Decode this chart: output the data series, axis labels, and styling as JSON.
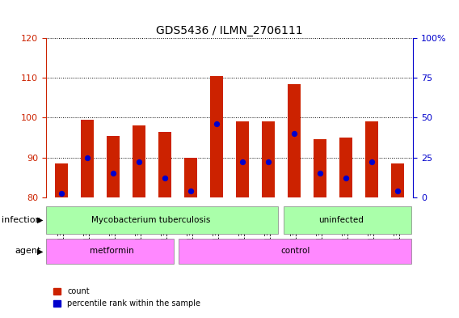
{
  "title": "GDS5436 / ILMN_2706111",
  "samples": [
    "GSM1378196",
    "GSM1378197",
    "GSM1378198",
    "GSM1378199",
    "GSM1378200",
    "GSM1378192",
    "GSM1378193",
    "GSM1378194",
    "GSM1378195",
    "GSM1378201",
    "GSM1378202",
    "GSM1378203",
    "GSM1378204",
    "GSM1378205"
  ],
  "counts": [
    88.5,
    99.5,
    95.5,
    98.0,
    96.5,
    90.0,
    110.5,
    99.0,
    99.0,
    108.5,
    94.5,
    95.0,
    99.0,
    88.5
  ],
  "percentile_values": [
    2.5,
    25.0,
    15.0,
    22.0,
    12.0,
    4.0,
    46.0,
    22.0,
    22.0,
    40.0,
    15.0,
    12.0,
    22.0,
    4.0
  ],
  "ylim_left": [
    80,
    120
  ],
  "ylim_right": [
    0,
    100
  ],
  "bar_bottom": 80.0,
  "bar_color": "#cc2200",
  "dot_color": "#0000cc",
  "infection_labels": [
    {
      "text": "Mycobacterium tuberculosis",
      "start": 0,
      "end": 8
    },
    {
      "text": "uninfected",
      "start": 9,
      "end": 13
    }
  ],
  "agent_labels": [
    {
      "text": "metformin",
      "start": 0,
      "end": 4
    },
    {
      "text": "control",
      "start": 5,
      "end": 13
    }
  ],
  "infection_color": "#aaffaa",
  "agent_color": "#ff88ff",
  "infection_row_label": "infection",
  "agent_row_label": "agent",
  "legend_count_label": "count",
  "legend_percentile_label": "percentile rank within the sample",
  "yticks_left": [
    80,
    90,
    100,
    110,
    120
  ],
  "yticks_right": [
    0,
    25,
    50,
    75,
    100
  ],
  "right_axis_color": "#0000cc",
  "left_axis_color": "#cc2200",
  "grid_color": "#000000"
}
